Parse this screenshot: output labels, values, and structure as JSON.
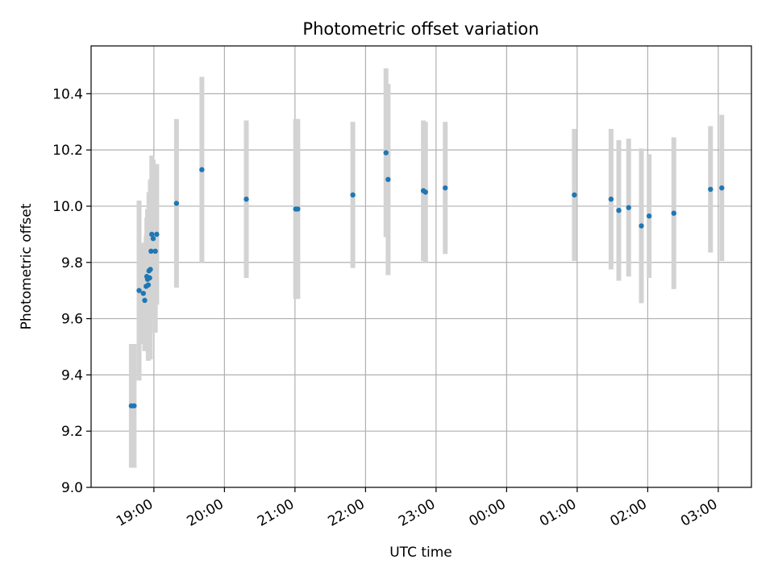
{
  "chart_data": {
    "type": "scatter",
    "title": "Photometric offset variation",
    "xlabel": "UTC time",
    "ylabel": "Photometric offset",
    "x_unit": "hours since 00:00 UTC (values above 24 are the following day)",
    "xlim": [
      18.11,
      27.47
    ],
    "ylim": [
      9.0,
      10.57
    ],
    "grid": true,
    "x_ticks": [
      {
        "value": 19,
        "label": "19:00"
      },
      {
        "value": 20,
        "label": "20:00"
      },
      {
        "value": 21,
        "label": "21:00"
      },
      {
        "value": 22,
        "label": "22:00"
      },
      {
        "value": 23,
        "label": "23:00"
      },
      {
        "value": 24,
        "label": "00:00"
      },
      {
        "value": 25,
        "label": "01:00"
      },
      {
        "value": 26,
        "label": "02:00"
      },
      {
        "value": 27,
        "label": "03:00"
      }
    ],
    "y_ticks": [
      {
        "value": 9.0,
        "label": "9.0"
      },
      {
        "value": 9.2,
        "label": "9.2"
      },
      {
        "value": 9.4,
        "label": "9.4"
      },
      {
        "value": 9.6,
        "label": "9.6"
      },
      {
        "value": 9.8,
        "label": "9.8"
      },
      {
        "value": 10.0,
        "label": "10.0"
      },
      {
        "value": 10.2,
        "label": "10.2"
      },
      {
        "value": 10.4,
        "label": "10.4"
      }
    ],
    "colors": {
      "point": "#1f77b4",
      "errorbar": "#d3d3d3",
      "grid": "#b0b0b0",
      "axis": "#000000"
    },
    "points": [
      {
        "x": 18.68,
        "y": 9.29,
        "err": 0.22
      },
      {
        "x": 18.72,
        "y": 9.29,
        "err": 0.22
      },
      {
        "x": 18.79,
        "y": 9.7,
        "err": 0.32
      },
      {
        "x": 18.85,
        "y": 9.69,
        "err": 0.18
      },
      {
        "x": 18.87,
        "y": 9.665,
        "err": 0.18
      },
      {
        "x": 18.89,
        "y": 9.715,
        "err": 0.18
      },
      {
        "x": 18.9,
        "y": 9.75,
        "err": 0.21
      },
      {
        "x": 18.91,
        "y": 9.74,
        "err": 0.25
      },
      {
        "x": 18.92,
        "y": 9.72,
        "err": 0.27
      },
      {
        "x": 18.93,
        "y": 9.77,
        "err": 0.28
      },
      {
        "x": 18.94,
        "y": 9.745,
        "err": 0.22
      },
      {
        "x": 18.95,
        "y": 9.775,
        "err": 0.32
      },
      {
        "x": 18.96,
        "y": 9.84,
        "err": 0.24
      },
      {
        "x": 18.97,
        "y": 9.9,
        "err": 0.28
      },
      {
        "x": 18.99,
        "y": 9.885,
        "err": 0.28
      },
      {
        "x": 19.02,
        "y": 9.84,
        "err": 0.29
      },
      {
        "x": 19.04,
        "y": 9.9,
        "err": 0.25
      },
      {
        "x": 19.32,
        "y": 10.01,
        "err": 0.3
      },
      {
        "x": 19.68,
        "y": 10.13,
        "err": 0.33
      },
      {
        "x": 20.31,
        "y": 10.025,
        "err": 0.28
      },
      {
        "x": 21.01,
        "y": 9.99,
        "err": 0.32
      },
      {
        "x": 21.04,
        "y": 9.99,
        "err": 0.32
      },
      {
        "x": 21.82,
        "y": 10.04,
        "err": 0.26
      },
      {
        "x": 22.29,
        "y": 10.19,
        "err": 0.3
      },
      {
        "x": 22.32,
        "y": 10.095,
        "err": 0.34
      },
      {
        "x": 22.82,
        "y": 10.055,
        "err": 0.25
      },
      {
        "x": 22.85,
        "y": 10.05,
        "err": 0.25
      },
      {
        "x": 23.13,
        "y": 10.065,
        "err": 0.235
      },
      {
        "x": 24.96,
        "y": 10.04,
        "err": 0.235
      },
      {
        "x": 25.48,
        "y": 10.025,
        "err": 0.25
      },
      {
        "x": 25.59,
        "y": 9.985,
        "err": 0.25
      },
      {
        "x": 25.73,
        "y": 9.995,
        "err": 0.245
      },
      {
        "x": 25.91,
        "y": 9.93,
        "err": 0.275
      },
      {
        "x": 26.02,
        "y": 9.965,
        "err": 0.22
      },
      {
        "x": 26.37,
        "y": 9.975,
        "err": 0.27
      },
      {
        "x": 26.89,
        "y": 10.06,
        "err": 0.225
      },
      {
        "x": 27.05,
        "y": 10.065,
        "err": 0.26
      }
    ]
  }
}
